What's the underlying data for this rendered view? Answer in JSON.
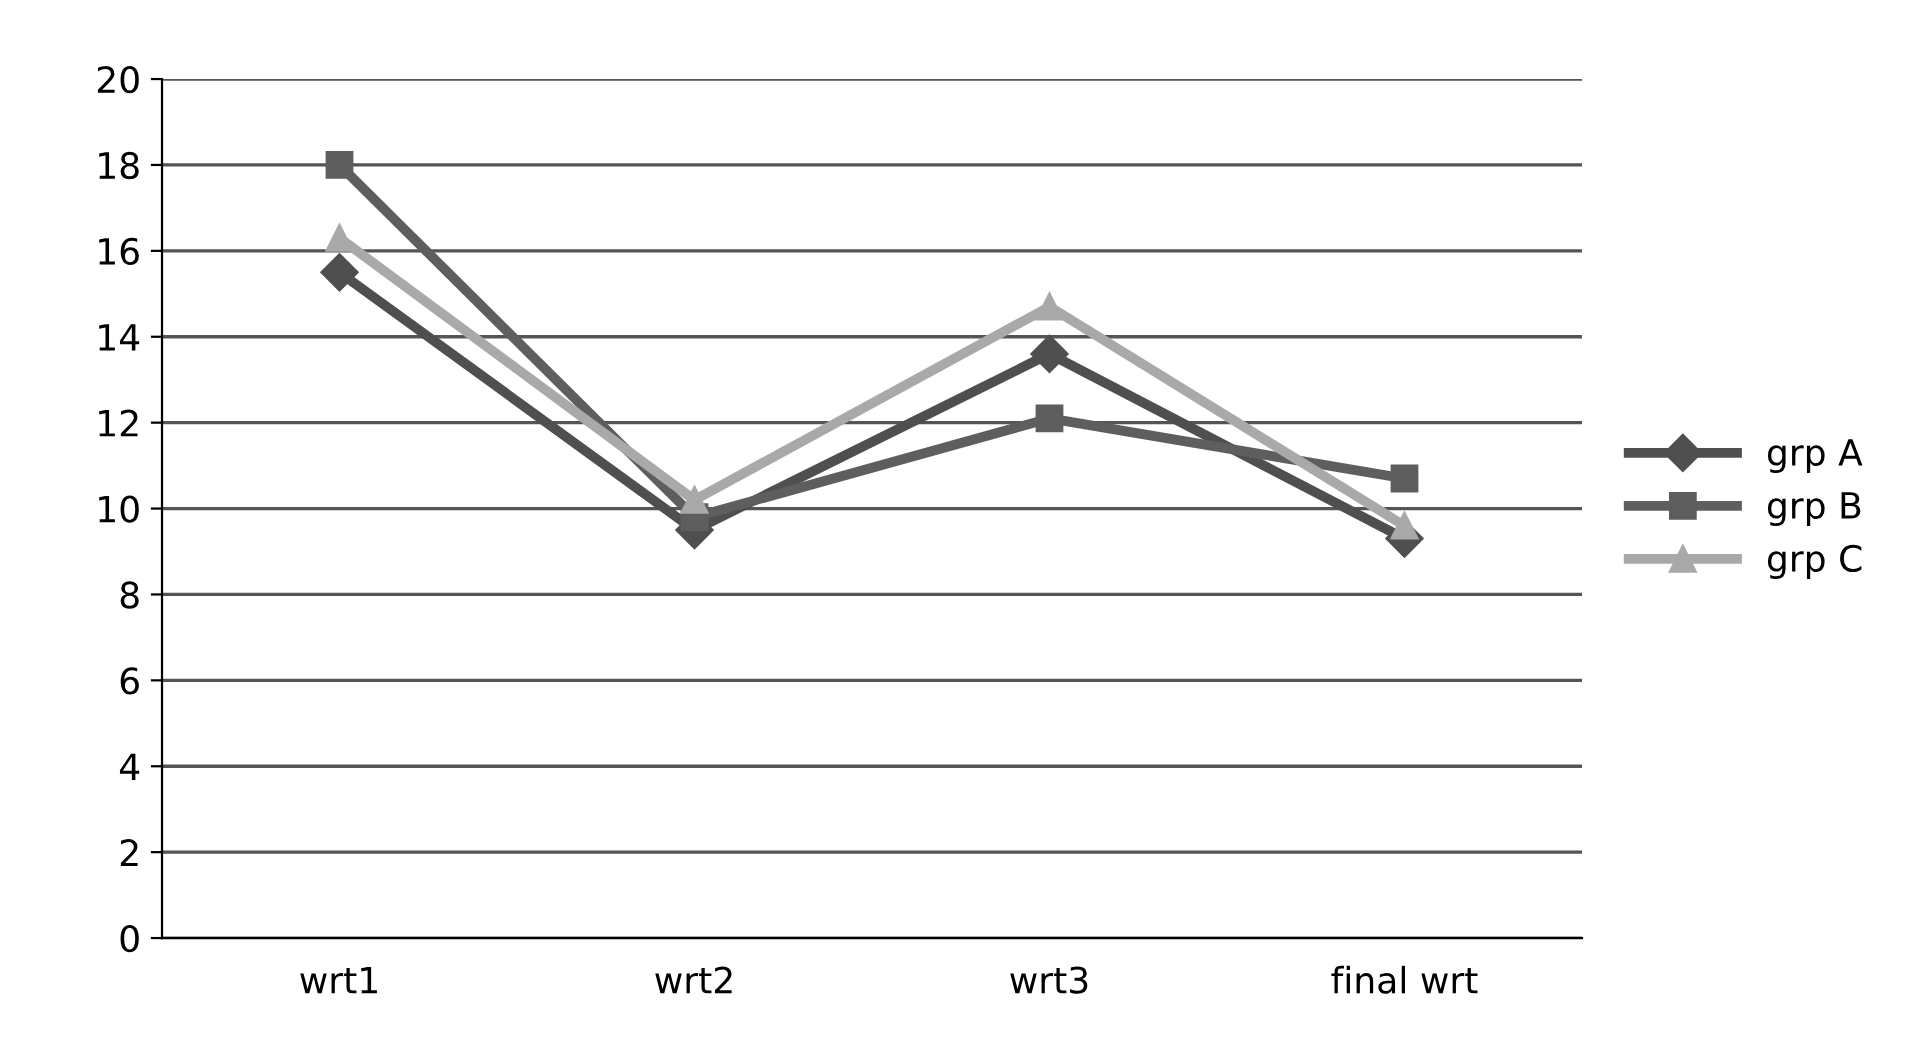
{
  "chart_data": {
    "type": "line",
    "categories": [
      "wrt1",
      "wrt2",
      "wrt3",
      "final wrt"
    ],
    "series": [
      {
        "name": "grp A",
        "color": "#4f4f4f",
        "marker": "diamond",
        "values": [
          15.5,
          9.5,
          13.6,
          9.3
        ]
      },
      {
        "name": "grp B",
        "color": "#5e5e5e",
        "marker": "square",
        "values": [
          18.0,
          9.8,
          12.1,
          10.7
        ]
      },
      {
        "name": "grp C",
        "color": "#a9a9a9",
        "marker": "triangle",
        "values": [
          16.3,
          10.2,
          14.7,
          9.6
        ]
      }
    ],
    "ylim": [
      0,
      20
    ],
    "yticks": [
      0,
      2,
      4,
      6,
      8,
      10,
      12,
      14,
      16,
      18,
      20
    ],
    "grid": "y",
    "legend": "right",
    "line_style": "solid"
  }
}
